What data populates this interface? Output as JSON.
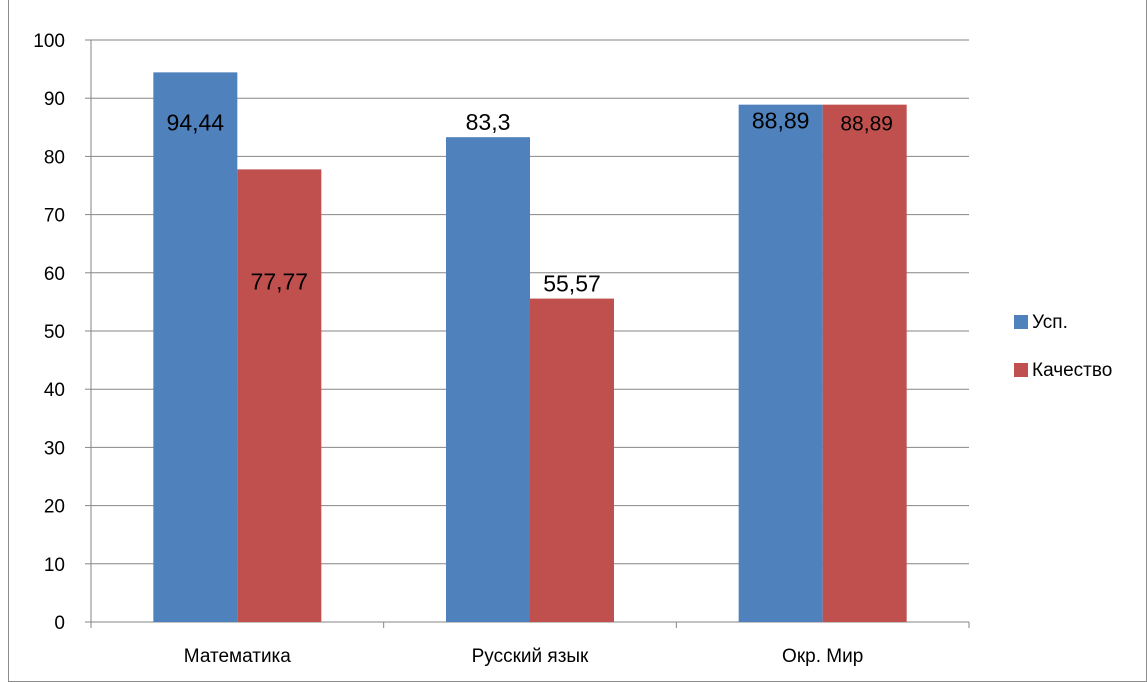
{
  "chart_data": {
    "type": "bar",
    "categories": [
      "Математика",
      "Русский язык",
      "Окр. Мир"
    ],
    "series": [
      {
        "name": "Усп.",
        "values": [
          94.44,
          83.3,
          88.89
        ],
        "labels": [
          "94,44",
          "83,3",
          "88,89"
        ],
        "color": "#4f81bd"
      },
      {
        "name": "Качество",
        "values": [
          77.77,
          55.57,
          88.89
        ],
        "labels": [
          "77,77",
          "55,57",
          "88,89"
        ],
        "color": "#c0504d"
      }
    ],
    "yticks": [
      "0",
      "10",
      "20",
      "30",
      "40",
      "50",
      "60",
      "70",
      "80",
      "90",
      "100"
    ],
    "ylim": [
      0,
      100
    ],
    "grid": true,
    "legend_position": "right"
  }
}
